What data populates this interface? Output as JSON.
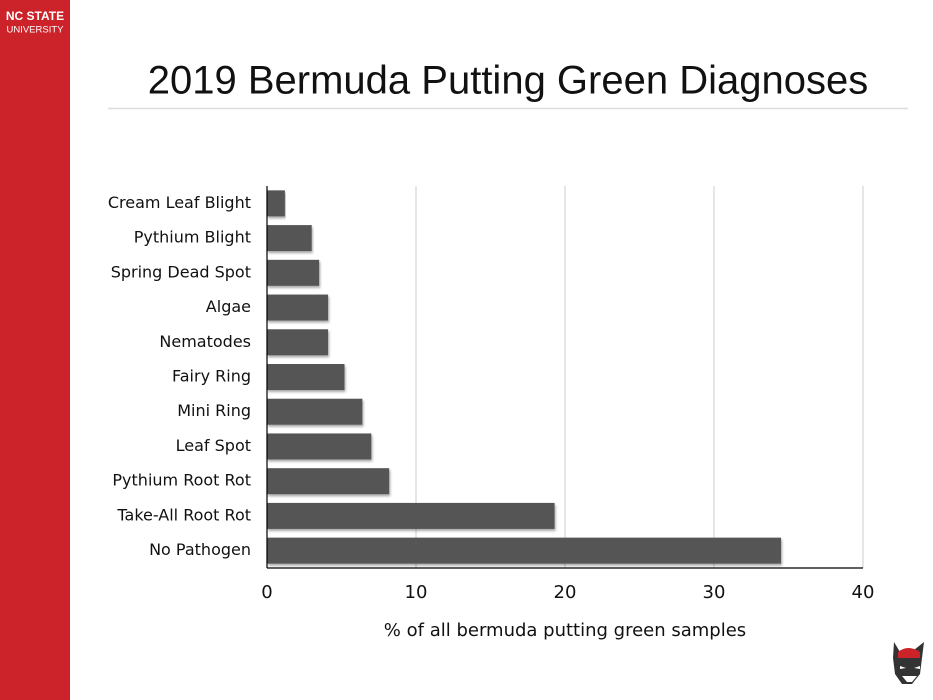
{
  "branding": {
    "line1": "NC STATE",
    "line2": "UNIVERSITY"
  },
  "chart_data": {
    "type": "hbar",
    "title": "2019 Bermuda Putting Green Diagnoses",
    "categories": [
      "Cream Leaf Blight",
      "Pythium Blight",
      "Spring Dead Spot",
      "Algae",
      "Nematodes",
      "Fairy Ring",
      "Mini Ring",
      "Leaf Spot",
      "Pythium Root Rot",
      "Take-All Root Rot",
      "No Pathogen"
    ],
    "values": [
      1.2,
      3.0,
      3.5,
      4.1,
      4.1,
      5.2,
      6.4,
      7.0,
      8.2,
      19.3,
      34.5
    ],
    "color": "#555555",
    "xlabel": "% of all bermuda putting green samples",
    "xlim": [
      0,
      40
    ],
    "xticks": [
      0,
      10,
      20,
      30,
      40
    ],
    "grid": true
  }
}
